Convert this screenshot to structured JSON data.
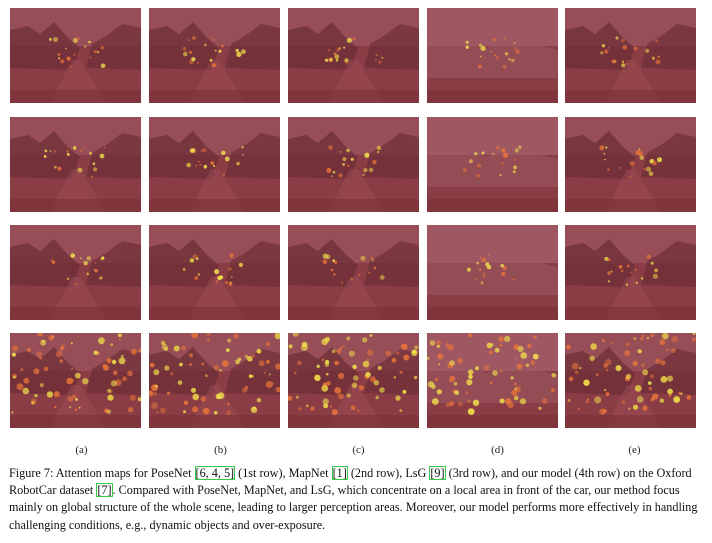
{
  "columns": [
    "(a)",
    "(b)",
    "(c)",
    "(d)",
    "(e)"
  ],
  "rows": [
    "PoseNet",
    "MapNet",
    "LsG",
    "our model"
  ],
  "colors": {
    "overlay": "#8a3d45",
    "sky": "#b07078",
    "hot": "#f2e24a",
    "warm": "#e8743a",
    "cite_box": "#34c94a"
  },
  "caption": {
    "p1": "Figure 7: Attention maps for PoseNet ",
    "c1": "[6, 4, 5]",
    "p2": " (1st row), MapNet ",
    "c2": "[1]",
    "p3": " (2nd row), LsG ",
    "c3": "[9]",
    "p4": " (3rd row), and our model (4th row) on the Oxford RobotCar dataset ",
    "c4": "[7]",
    "p5": ". Compared with PoseNet, MapNet, and LsG, which concentrate on a local area in front of the car, our method focus mainly on global structure of the whole scene, leading to larger perception areas. Moreover, our model performs more effectively in handling challenging conditions, e.g., dynamic objects and over-exposure."
  }
}
